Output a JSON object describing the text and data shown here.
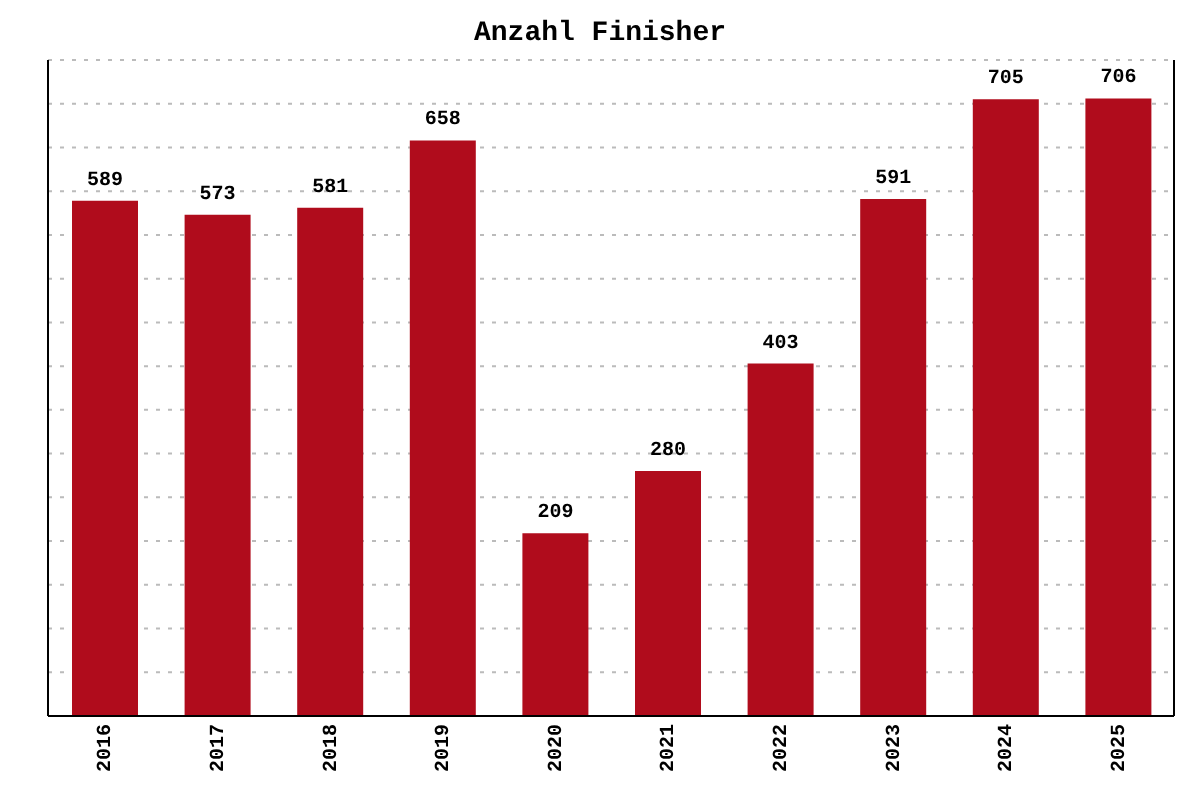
{
  "chart_data": {
    "type": "bar",
    "title": "Anzahl Finisher",
    "categories": [
      "2016",
      "2017",
      "2018",
      "2019",
      "2020",
      "2021",
      "2022",
      "2023",
      "2024",
      "2025"
    ],
    "values": [
      589,
      573,
      581,
      658,
      209,
      280,
      403,
      591,
      705,
      706
    ],
    "color": "#b00c1c",
    "ylim": [
      0,
      750
    ],
    "yticks": [
      {
        "value": 0,
        "label": null
      },
      {
        "value": 50,
        "label": null
      },
      {
        "value": 100,
        "label": null
      },
      {
        "value": 150,
        "label": null
      },
      {
        "value": 200,
        "label": null
      },
      {
        "value": 250,
        "label": null
      },
      {
        "value": 300,
        "label": null
      },
      {
        "value": 350,
        "label": null
      },
      {
        "value": 400,
        "label": null
      },
      {
        "value": 450,
        "label": null
      },
      {
        "value": 500,
        "label": null
      },
      {
        "value": 550,
        "label": null
      },
      {
        "value": 600,
        "label": null
      },
      {
        "value": 650,
        "label": null
      },
      {
        "value": 700,
        "label": null
      },
      {
        "value": 750,
        "label": null
      }
    ],
    "tick_labels": "x",
    "grid": "y",
    "data_labels": true
  }
}
